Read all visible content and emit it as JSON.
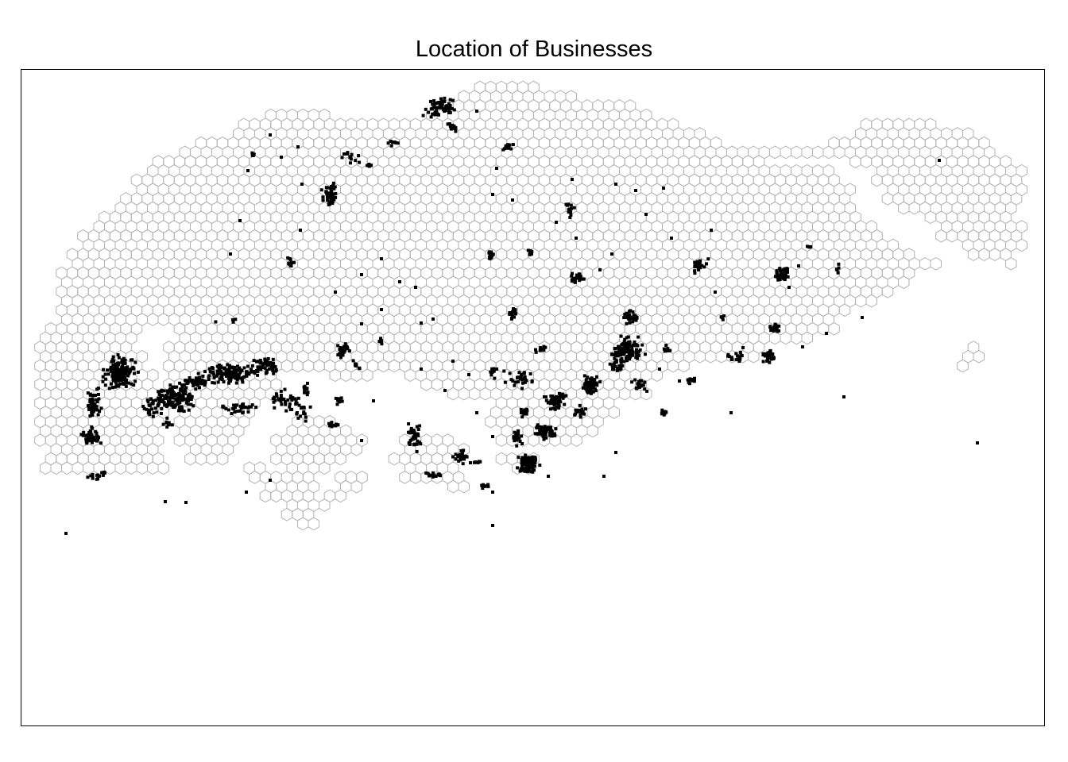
{
  "title": "Location of Businesses",
  "colors": {
    "hex_outline": "#b3b3b3",
    "business_point": "#000000",
    "frame": "#000000",
    "background": "#ffffff"
  },
  "layers": [
    {
      "name": "hexagon grid",
      "style": "grey outlined polygons, no fill"
    },
    {
      "name": "business locations",
      "style": "small black square points"
    }
  ]
}
